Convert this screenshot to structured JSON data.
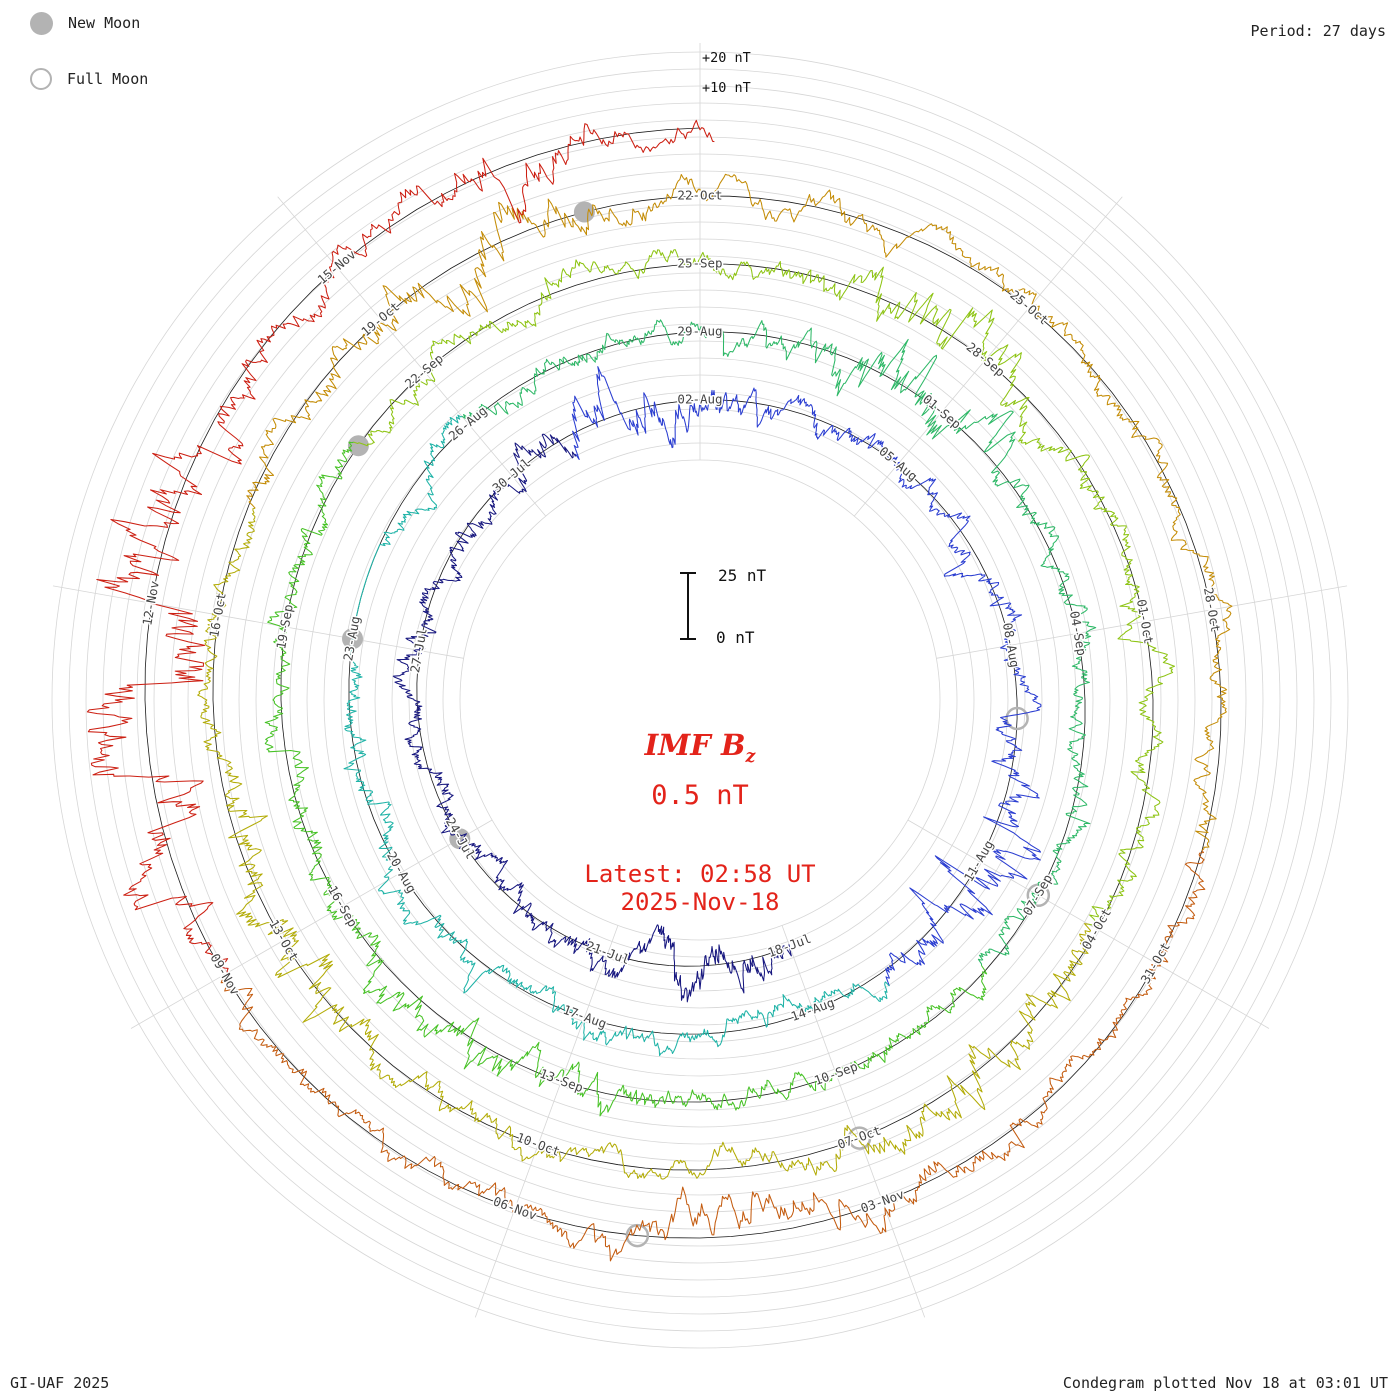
{
  "header": {
    "period_label": "Period: 27 days"
  },
  "legend": {
    "new_moon": "New Moon",
    "full_moon": "Full Moon"
  },
  "radial_labels": {
    "plus20": "+20 nT",
    "plus10": "+10 nT"
  },
  "center": {
    "scale_top": "25 nT",
    "scale_bottom": "0 nT",
    "title_main": "IMF B",
    "title_sub": "z",
    "current_value": "0.5 nT",
    "latest_line1": "Latest: 02:58 UT",
    "latest_line2": "2025-Nov-18"
  },
  "footer": {
    "left": "GI-UAF 2025",
    "right": "Condegram plotted Nov 18 at 03:01 UT"
  },
  "chart_data": {
    "type": "condegram-spiral-line",
    "series_label": "IMF Bz",
    "units": "nT",
    "period_days": 27,
    "total_days": 123.12,
    "start_label": "18-Jul",
    "latest_label": "2025-Nov-18 02:58 UT",
    "latest_value_nT": 0.5,
    "scale_bar_nT": 25,
    "radial_tick_labels": [
      "+10 nT",
      "+20 nT"
    ],
    "date_labels": [
      {
        "day": 0,
        "label": "18-Jul"
      },
      {
        "day": 3,
        "label": "21-Jul"
      },
      {
        "day": 6,
        "label": "24-Jul"
      },
      {
        "day": 9,
        "label": "27-Jul"
      },
      {
        "day": 12,
        "label": "30-Jul"
      },
      {
        "day": 15,
        "label": "02-Aug"
      },
      {
        "day": 18,
        "label": "05-Aug"
      },
      {
        "day": 21,
        "label": "08-Aug"
      },
      {
        "day": 24,
        "label": "11-Aug"
      },
      {
        "day": 27,
        "label": "14-Aug"
      },
      {
        "day": 30,
        "label": "17-Aug"
      },
      {
        "day": 33,
        "label": "20-Aug"
      },
      {
        "day": 36,
        "label": "23-Aug"
      },
      {
        "day": 39,
        "label": "26-Aug"
      },
      {
        "day": 42,
        "label": "29-Aug"
      },
      {
        "day": 45,
        "label": "01-Sep"
      },
      {
        "day": 48,
        "label": "04-Sep"
      },
      {
        "day": 51,
        "label": "07-Sep"
      },
      {
        "day": 54,
        "label": "10-Sep"
      },
      {
        "day": 57,
        "label": "13-Sep"
      },
      {
        "day": 60,
        "label": "16-Sep"
      },
      {
        "day": 63,
        "label": "19-Sep"
      },
      {
        "day": 66,
        "label": "22-Sep"
      },
      {
        "day": 69,
        "label": "25-Sep"
      },
      {
        "day": 72,
        "label": "28-Sep"
      },
      {
        "day": 75,
        "label": "01-Oct"
      },
      {
        "day": 78,
        "label": "04-Oct"
      },
      {
        "day": 81,
        "label": "07-Oct"
      },
      {
        "day": 84,
        "label": "10-Oct"
      },
      {
        "day": 87,
        "label": "13-Oct"
      },
      {
        "day": 90,
        "label": "16-Oct"
      },
      {
        "day": 93,
        "label": "19-Oct"
      },
      {
        "day": 96,
        "label": "22-Oct"
      },
      {
        "day": 99,
        "label": "25-Oct"
      },
      {
        "day": 102,
        "label": "28-Oct"
      },
      {
        "day": 105,
        "label": "31-Oct"
      },
      {
        "day": 108,
        "label": "03-Nov"
      },
      {
        "day": 111,
        "label": "06-Nov"
      },
      {
        "day": 114,
        "label": "09-Nov"
      },
      {
        "day": 117,
        "label": "12-Nov"
      },
      {
        "day": 120,
        "label": "15-Nov"
      }
    ],
    "color_bands": [
      {
        "from": 0,
        "to": 13,
        "color": "#17177f"
      },
      {
        "from": 13,
        "to": 26,
        "color": "#2b3ed1"
      },
      {
        "from": 26,
        "to": 39,
        "color": "#1fb3a7"
      },
      {
        "from": 39,
        "to": 52,
        "color": "#2eb867"
      },
      {
        "from": 52,
        "to": 65,
        "color": "#47c226"
      },
      {
        "from": 65,
        "to": 78,
        "color": "#8ec414"
      },
      {
        "from": 78,
        "to": 91,
        "color": "#b3ac08"
      },
      {
        "from": 91,
        "to": 104,
        "color": "#c48c06"
      },
      {
        "from": 104,
        "to": 114,
        "color": "#c45c10"
      },
      {
        "from": 114,
        "to": 123.2,
        "color": "#cc1f12"
      }
    ],
    "new_moon_days": [
      6,
      36,
      65,
      95
    ],
    "full_moon_days": [
      22,
      51,
      81,
      110
    ],
    "activity_profile": {
      "storms": [
        {
          "c": 1.5,
          "a": 1.4,
          "w": 1.2
        },
        {
          "c": 14,
          "a": 1.2,
          "w": 1.5
        },
        {
          "c": 24,
          "a": 1.6,
          "w": 1.2
        },
        {
          "c": 44.6,
          "a": 2.2,
          "w": 1.0
        },
        {
          "c": 58,
          "a": 1.0,
          "w": 2.0
        },
        {
          "c": 71.5,
          "a": 1.6,
          "w": 1.3
        },
        {
          "c": 80,
          "a": 1.1,
          "w": 1.5
        },
        {
          "c": 87,
          "a": 1.6,
          "w": 1.3
        },
        {
          "c": 94,
          "a": 1.8,
          "w": 1.2
        },
        {
          "c": 109,
          "a": 1.3,
          "w": 1.5
        },
        {
          "c": 116.6,
          "a": 3.8,
          "w": 1.6
        },
        {
          "c": 121.5,
          "a": 1.2,
          "w": 0.8
        }
      ],
      "gaps": [
        [
          35.7,
          37.2
        ]
      ]
    },
    "colors": {
      "accent_red": "#e3231a",
      "moon": "#b3b3b3",
      "grid": "#d6d6d6",
      "baseline": "#1a1a1a",
      "label": "#444444"
    },
    "grid": {
      "rings": true,
      "spoke_step_deg": 40
    }
  }
}
